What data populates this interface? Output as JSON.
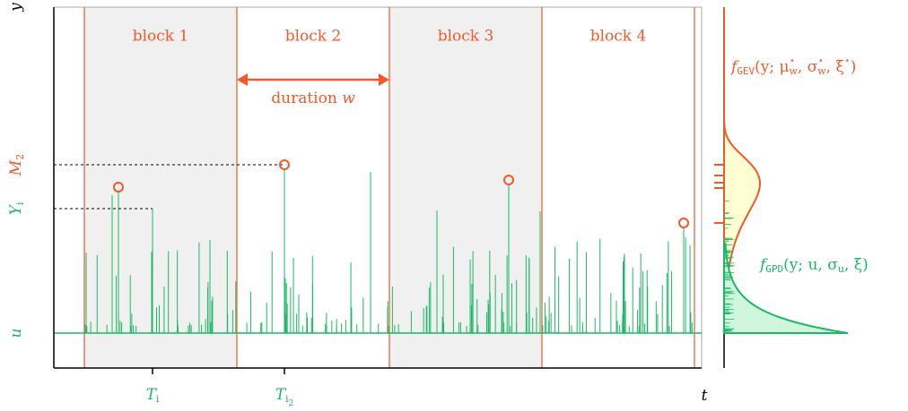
{
  "axes": {
    "y": [
      {
        "t": "y"
      }
    ],
    "t": [
      {
        "t": "t"
      }
    ]
  },
  "blocks": [
    "block 1",
    "block 2",
    "block 3",
    "block 4"
  ],
  "duration": [
    {
      "t": "duration "
    },
    {
      "t": "w"
    }
  ],
  "left_labels": {
    "M": [
      {
        "t": "M"
      },
      {
        "sub": "2"
      }
    ],
    "Y": [
      {
        "t": "Y"
      },
      {
        "sub": "i"
      }
    ],
    "u": [
      {
        "t": "u"
      }
    ]
  },
  "x_labels": {
    "Ti": [
      {
        "t": "T"
      },
      {
        "sub": "i"
      }
    ],
    "Ti2": [
      {
        "t": "T"
      },
      {
        "sub": "i"
      },
      {
        "subsub": "2"
      }
    ]
  },
  "gev": [
    {
      "t": "f"
    },
    {
      "sub": "GEV"
    },
    {
      "t": "(y; μ"
    },
    {
      "sup": "⋆"
    },
    {
      "sub": "w"
    },
    {
      "t": ", σ"
    },
    {
      "sup": "⋆"
    },
    {
      "sub": "w"
    },
    {
      "t": ", ξ"
    },
    {
      "sup": "⋆"
    },
    {
      "t": ")"
    }
  ],
  "gpd": [
    {
      "t": "f"
    },
    {
      "sub": "GPD"
    },
    {
      "t": "(y; u, σ"
    },
    {
      "sub": "u"
    },
    {
      "t": ", ξ)"
    }
  ]
}
